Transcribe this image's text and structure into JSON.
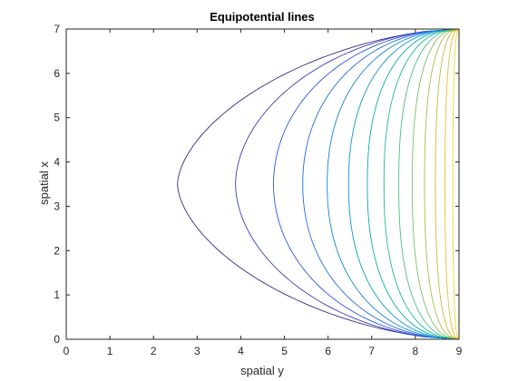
{
  "chart_data": {
    "type": "line",
    "title": "Equipotential lines",
    "xlabel": "spatial y",
    "ylabel": "spatial x",
    "xlim": [
      0,
      9
    ],
    "ylim": [
      0,
      7
    ],
    "xticks": [
      "0",
      "1",
      "2",
      "3",
      "4",
      "5",
      "6",
      "7",
      "8",
      "9"
    ],
    "yticks": [
      "0",
      "1",
      "2",
      "3",
      "4",
      "5",
      "6",
      "7"
    ],
    "grid": false,
    "legend": "none",
    "colormap": "parula",
    "contour_vertex_x": 9.0,
    "contour_y_range": [
      0,
      7
    ],
    "contour_apex_x": [
      2.55,
      3.88,
      4.75,
      5.42,
      5.98,
      6.47,
      6.9,
      7.28,
      7.62,
      7.93,
      8.21,
      8.46,
      8.68,
      8.86
    ],
    "colors": [
      "#352a87",
      "#3a3dbf",
      "#2e56d9",
      "#1f6fe0",
      "#1484d4",
      "#0b98c9",
      "#0aa9b5",
      "#21b59e",
      "#4bbd84",
      "#7bbf66",
      "#a6be4c",
      "#cdb936",
      "#ecbb32",
      "#f6d82a"
    ]
  }
}
